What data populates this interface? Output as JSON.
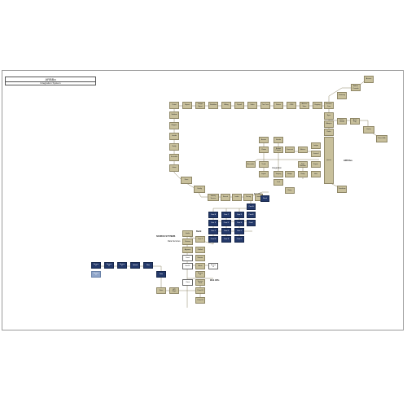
{
  "header": {
    "title": "ARBBa",
    "subtitle": "Integration System"
  },
  "colors": {
    "tan": "#c8c09c",
    "navy": "#24396a",
    "light_blue": "#8fa5c9",
    "line": "#8e8666",
    "frame": "#9a9a9a"
  },
  "labels": [
    {
      "id": "l1",
      "text": "ARB Bus"
    },
    {
      "id": "l2",
      "text": "Build"
    },
    {
      "id": "l3",
      "text": "Build Bus"
    },
    {
      "id": "l4",
      "text": "SOURCE SYSTEMS"
    },
    {
      "id": "l5",
      "text": "Data Services"
    },
    {
      "id": "l6",
      "text": "Integration"
    },
    {
      "id": "l7",
      "text": "Web APIs"
    }
  ],
  "nodes": [
    {
      "id": "n1",
      "text": "Access"
    },
    {
      "id": "n2",
      "text": "Admin Console"
    },
    {
      "id": "n3",
      "text": "Gateway"
    },
    {
      "id": "n4",
      "text": "Portal"
    },
    {
      "id": "n5",
      "text": "Report"
    },
    {
      "id": "n6",
      "text": "Ledger Mgmt"
    },
    {
      "id": "n7",
      "text": "Workflow"
    },
    {
      "id": "n8",
      "text": "Billing"
    },
    {
      "id": "n9",
      "text": "Payroll"
    },
    {
      "id": "n10",
      "text": "Sales"
    },
    {
      "id": "n11",
      "text": "Tax Core"
    },
    {
      "id": "n12",
      "text": "Router"
    },
    {
      "id": "n13",
      "text": "CRM"
    },
    {
      "id": "n14",
      "text": "Archive Store"
    },
    {
      "id": "n15",
      "text": "Registry"
    },
    {
      "id": "n16",
      "text": "Finance Core"
    },
    {
      "id": "n17",
      "text": "Sync"
    },
    {
      "id": "n18",
      "text": "Adapter"
    },
    {
      "id": "n19",
      "text": "Rules"
    },
    {
      "id": "n20",
      "text": "Policy Check"
    },
    {
      "id": "n21",
      "text": "Audit Log"
    },
    {
      "id": "n22",
      "text": "Cache"
    },
    {
      "id": "n23",
      "text": "Event Hub"
    },
    {
      "id": "n24",
      "text": "Queue"
    },
    {
      "id": "n25",
      "text": "Transform"
    },
    {
      "id": "n26",
      "text": "Validate"
    },
    {
      "id": "n27",
      "text": "Mapper"
    },
    {
      "id": "n28",
      "text": "Loader"
    },
    {
      "id": "n29",
      "text": "Notify"
    },
    {
      "id": "n30",
      "text": "Schedule"
    },
    {
      "id": "n31",
      "text": "Inbox"
    },
    {
      "id": "n32",
      "text": "Docs"
    },
    {
      "id": "n33",
      "text": "Config"
    },
    {
      "id": "n34",
      "text": "Identity Service"
    },
    {
      "id": "n35",
      "text": "Search"
    },
    {
      "id": "n36",
      "text": "Index"
    },
    {
      "id": "n37",
      "text": "Pricing"
    },
    {
      "id": "n38",
      "text": "Orders"
    },
    {
      "id": "n39",
      "text": "Stock"
    },
    {
      "id": "n40",
      "text": "Assets"
    },
    {
      "id": "n41",
      "text": "Vendor"
    },
    {
      "id": "n42",
      "text": "Claims"
    },
    {
      "id": "n43",
      "text": "Budget Planner"
    },
    {
      "id": "n44",
      "text": "Forecast"
    },
    {
      "id": "n45",
      "text": "Metrics"
    },
    {
      "id": "n46",
      "text": "Ledger"
    },
    {
      "id": "n47",
      "text": "Journal"
    },
    {
      "id": "n48",
      "text": "Accounts"
    },
    {
      "id": "n49",
      "text": "Trade"
    },
    {
      "id": "n50",
      "text": "Master Data Platform"
    },
    {
      "id": "n51",
      "text": "Export"
    },
    {
      "id": "n52",
      "text": "Import"
    },
    {
      "id": "n53",
      "text": "Staging"
    },
    {
      "id": "n54",
      "text": "Bridge"
    },
    {
      "id": "n55",
      "text": "Relay"
    },
    {
      "id": "n56",
      "text": "Hub"
    },
    {
      "id": "n57",
      "text": "Link"
    },
    {
      "id": "n58",
      "text": "Entry"
    },
    {
      "id": "n59",
      "text": "Core A"
    },
    {
      "id": "n60",
      "text": "Core B"
    },
    {
      "id": "n61",
      "text": "Core C"
    },
    {
      "id": "n62",
      "text": "Core D"
    },
    {
      "id": "n63",
      "text": "Core E"
    },
    {
      "id": "n64",
      "text": "Core F"
    },
    {
      "id": "n65",
      "text": "Core G"
    },
    {
      "id": "n66",
      "text": "Core H"
    },
    {
      "id": "n67",
      "text": "Core I"
    },
    {
      "id": "n68",
      "text": "Core J"
    },
    {
      "id": "n69",
      "text": "Core K"
    },
    {
      "id": "n70",
      "text": "Core L"
    },
    {
      "id": "n71",
      "text": "Core M"
    },
    {
      "id": "n72",
      "text": "Core N"
    },
    {
      "id": "n73",
      "text": "Core O"
    },
    {
      "id": "n74",
      "text": "Core P"
    },
    {
      "id": "n75",
      "text": "Intake"
    },
    {
      "id": "n76",
      "text": "Review"
    },
    {
      "id": "n77",
      "text": "Approve"
    },
    {
      "id": "n78",
      "text": "Publish"
    },
    {
      "id": "n79",
      "text": "Feed"
    },
    {
      "id": "n80",
      "text": "Monitor"
    },
    {
      "id": "n81",
      "text": "Health"
    },
    {
      "id": "n82",
      "text": "Alerts"
    },
    {
      "id": "n83",
      "text": "Source A"
    },
    {
      "id": "n84",
      "text": "Source B"
    },
    {
      "id": "n85",
      "text": "Source C"
    },
    {
      "id": "n86",
      "text": "Source D"
    },
    {
      "id": "n87",
      "text": "Source E"
    },
    {
      "id": "n88",
      "text": "Source F"
    },
    {
      "id": "n89",
      "text": "Upload"
    },
    {
      "id": "n90",
      "text": "Files"
    },
    {
      "id": "n91",
      "text": "Gate"
    },
    {
      "id": "n92",
      "text": "Store"
    },
    {
      "id": "n93",
      "text": "API Edge"
    },
    {
      "id": "n94",
      "text": "Client"
    },
    {
      "id": "n95",
      "text": "Service Desk"
    },
    {
      "id": "n96",
      "text": "Portal B"
    }
  ]
}
